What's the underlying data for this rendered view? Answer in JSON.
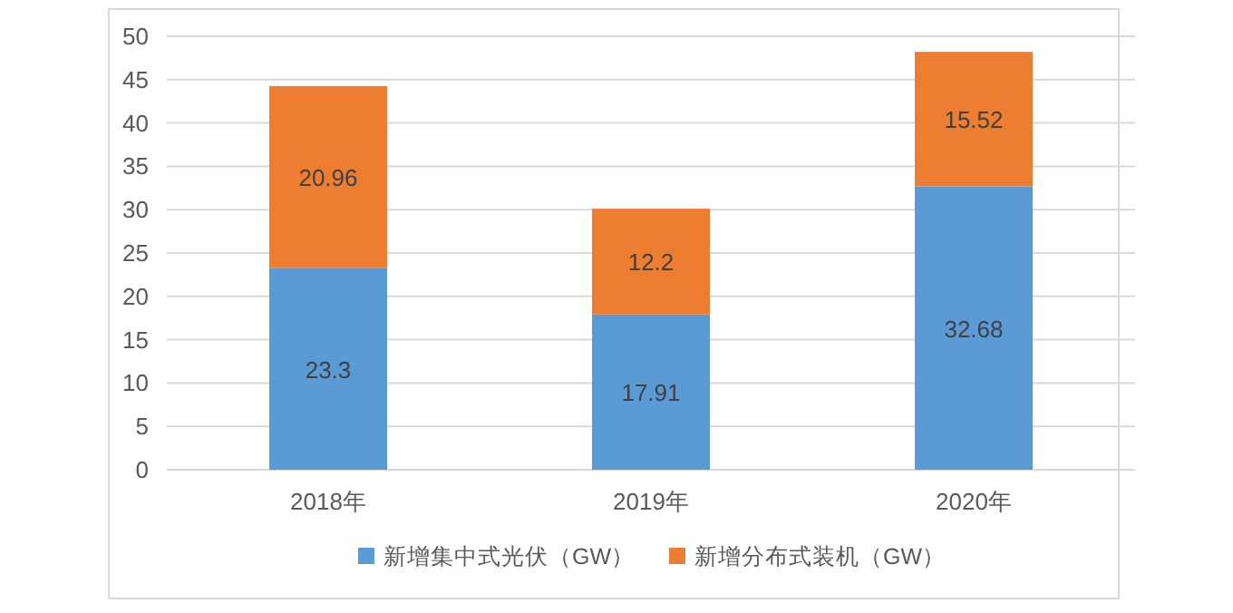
{
  "chart_data": {
    "type": "bar",
    "stacked": true,
    "categories": [
      "2018年",
      "2019年",
      "2020年"
    ],
    "series": [
      {
        "name": "新增集中式光伏（GW）",
        "color": "#5b9bd5",
        "values": [
          23.3,
          17.91,
          32.68
        ]
      },
      {
        "name": "新增分布式装机（GW）",
        "color": "#ed7d31",
        "values": [
          20.96,
          12.2,
          15.52
        ]
      }
    ],
    "ylim": [
      0,
      50
    ],
    "yticks": [
      0,
      5,
      10,
      15,
      20,
      25,
      30,
      35,
      40,
      45,
      50
    ],
    "grid": "y",
    "legend": "bottom",
    "data_labels": true
  }
}
